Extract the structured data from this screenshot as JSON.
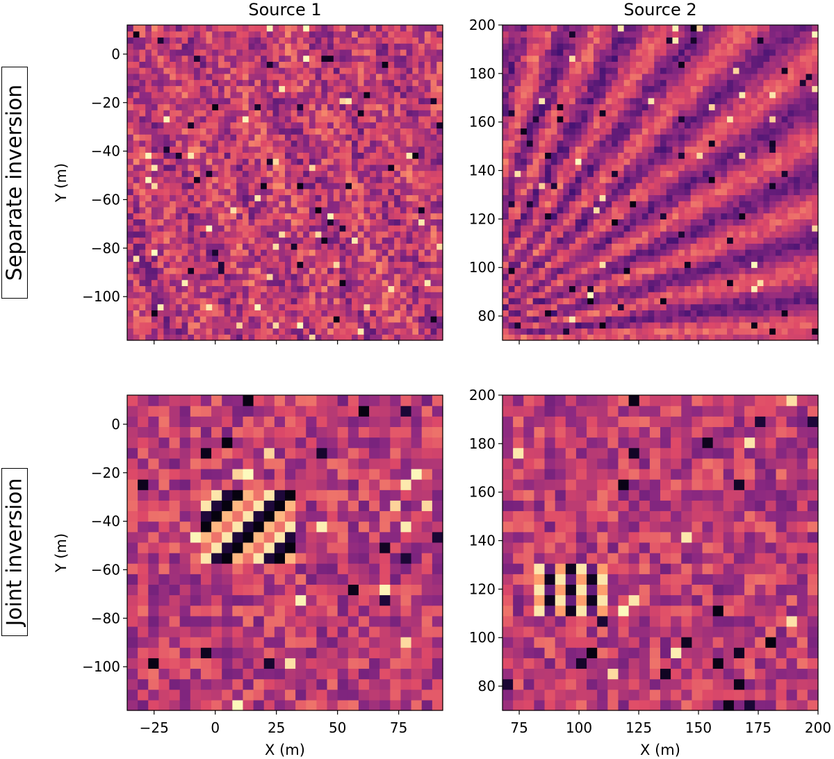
{
  "figure": {
    "column_titles": [
      "Source 1",
      "Source 2"
    ],
    "row_titles": [
      "Separate inversion",
      "Joint inversion"
    ],
    "colormap": "magma (truncated: dark purple to pale yellow)",
    "colormap_stops": [
      "#000004",
      "#3b0f70",
      "#8c2981",
      "#de4968",
      "#fe9f6d",
      "#fcfdbf"
    ]
  },
  "chart_data": [
    {
      "type": "heatmap",
      "panel": "top-left",
      "column": "Source 1",
      "row": "Separate inversion",
      "xlabel": "",
      "ylabel": "Y (m)",
      "xlim": [
        -36,
        93
      ],
      "ylim": [
        -118,
        12
      ],
      "x_ticks": [
        -25,
        0,
        25,
        50,
        75
      ],
      "y_ticks": [
        0,
        -20,
        -40,
        -60,
        -80,
        -100
      ],
      "x_ticklabels_shown": false,
      "grid": [
        52,
        52
      ],
      "description": "noisy fine grid, mostly purple/pink"
    },
    {
      "type": "heatmap",
      "panel": "top-right",
      "column": "Source 2",
      "row": "Separate inversion",
      "xlabel": "",
      "ylabel": "",
      "xlim": [
        68,
        200
      ],
      "ylim": [
        70,
        200
      ],
      "x_ticks": [
        75,
        100,
        125,
        150,
        175,
        200
      ],
      "y_ticks": [
        200,
        180,
        160,
        140,
        120,
        100,
        80
      ],
      "x_ticklabels_shown": false,
      "grid": [
        52,
        52
      ],
      "description": "diagonal streak texture radiating from lower-left"
    },
    {
      "type": "heatmap",
      "panel": "bottom-left",
      "column": "Source 1",
      "row": "Joint inversion",
      "xlabel": "X (m)",
      "ylabel": "Y (m)",
      "xlim": [
        -36,
        93
      ],
      "ylim": [
        -118,
        12
      ],
      "x_ticks": [
        -25,
        0,
        25,
        50,
        75
      ],
      "y_ticks": [
        0,
        -20,
        -40,
        -60,
        -80,
        -100
      ],
      "x_ticklabels_shown": true,
      "grid": [
        30,
        30
      ],
      "description": "coarse grid with bright/dark cluster near (20, -50)"
    },
    {
      "type": "heatmap",
      "panel": "bottom-right",
      "column": "Source 2",
      "row": "Joint inversion",
      "xlabel": "X (m)",
      "ylabel": "",
      "xlim": [
        68,
        200
      ],
      "ylim": [
        70,
        200
      ],
      "x_ticks": [
        75,
        100,
        125,
        150,
        175,
        200
      ],
      "y_ticks": [
        200,
        180,
        160,
        140,
        120,
        100,
        80
      ],
      "x_ticklabels_shown": true,
      "grid": [
        30,
        30
      ],
      "description": "coarse grid with bright/dark cluster near (95, 115)"
    }
  ]
}
